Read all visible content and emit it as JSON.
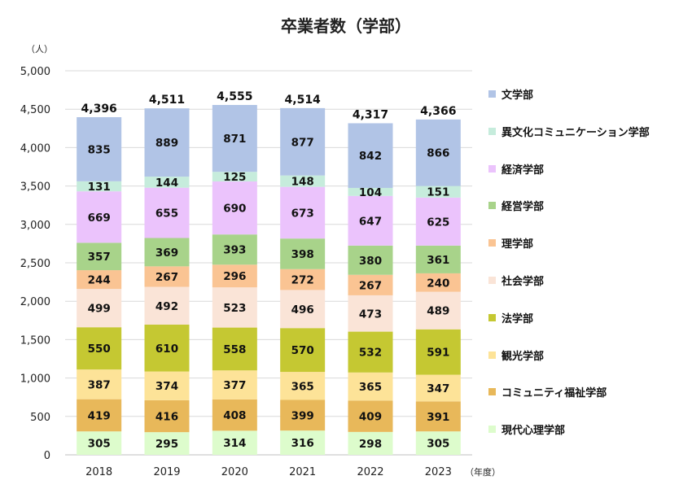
{
  "chart_data": {
    "type": "bar",
    "stacked": true,
    "title": "卒業者数（学部）",
    "ylabel": "（人）",
    "xlabel": "（年度）",
    "ylim": [
      0,
      5000
    ],
    "yticks": [
      "0",
      "500",
      "1,000",
      "1,500",
      "2,000",
      "2,500",
      "3,000",
      "3,500",
      "4,000",
      "4,500",
      "5,000"
    ],
    "categories": [
      "2018",
      "2019",
      "2020",
      "2021",
      "2022",
      "2023"
    ],
    "totals": [
      "4,396",
      "4,511",
      "4,555",
      "4,514",
      "4,317",
      "4,366"
    ],
    "grid": "horizontal",
    "legend_position": "right",
    "series": [
      {
        "name": "現代心理学部",
        "color": "#ddfccc",
        "values": [
          305,
          295,
          314,
          316,
          298,
          305
        ]
      },
      {
        "name": "コミュニティ福祉学部",
        "color": "#e8b85a",
        "values": [
          419,
          416,
          408,
          399,
          409,
          391
        ]
      },
      {
        "name": "観光学部",
        "color": "#fde398",
        "values": [
          387,
          374,
          377,
          365,
          365,
          347
        ]
      },
      {
        "name": "法学部",
        "color": "#c5c832",
        "values": [
          550,
          610,
          558,
          570,
          532,
          591
        ]
      },
      {
        "name": "社会学部",
        "color": "#fae4d7",
        "values": [
          499,
          492,
          523,
          496,
          473,
          489
        ]
      },
      {
        "name": "理学部",
        "color": "#fac493",
        "values": [
          244,
          267,
          296,
          272,
          267,
          240
        ]
      },
      {
        "name": "経営学部",
        "color": "#a8d38a",
        "values": [
          357,
          369,
          393,
          398,
          380,
          361
        ]
      },
      {
        "name": "経済学部",
        "color": "#ebc3fc",
        "values": [
          669,
          655,
          690,
          673,
          647,
          625
        ]
      },
      {
        "name": "異文化コミュニケーション学部",
        "color": "#c6ecdc",
        "values": [
          131,
          144,
          125,
          148,
          104,
          151
        ]
      },
      {
        "name": "文学部",
        "color": "#b1c4e6",
        "values": [
          835,
          889,
          871,
          877,
          842,
          866
        ]
      }
    ]
  }
}
